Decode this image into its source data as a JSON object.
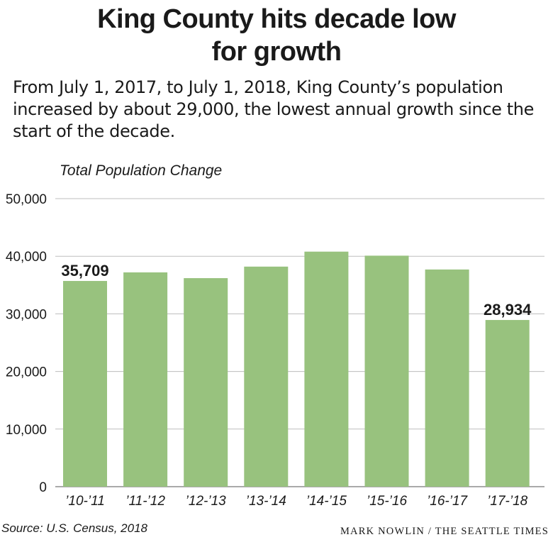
{
  "header": {
    "title_line1": "King County hits decade low",
    "title_line2": "for growth",
    "subtitle": "From July 1, 2017, to July 1, 2018, King County’s population increased by about 29,000, the lowest annual growth since the start of the decade."
  },
  "footer": {
    "source": "Source: U.S. Census, 2018",
    "credit": "MARK NOWLIN / THE SEATTLE TIMES"
  },
  "colors": {
    "bar": "#98c27e",
    "grid": "#bdbdbd",
    "text": "#1a1a1a"
  },
  "chart_data": {
    "type": "bar",
    "title": "King County hits decade low for growth",
    "ylabel": "Total Population Change",
    "xlabel": "",
    "categories": [
      "’10-’11",
      "’11-’12",
      "’12-’13",
      "’13-’14",
      "’14-’15",
      "’15-’16",
      "’16-’17",
      "’17-’18"
    ],
    "values": [
      35709,
      37200,
      36200,
      38200,
      40800,
      40100,
      37700,
      28934
    ],
    "data_labels": [
      "35,709",
      "",
      "",
      "",
      "",
      "",
      "",
      "28,934"
    ],
    "ylim": [
      0,
      50000
    ],
    "yticks": [
      0,
      10000,
      20000,
      30000,
      40000,
      50000
    ],
    "ytick_labels": [
      "0",
      "10,000",
      "20,000",
      "30,000",
      "40,000",
      "50,000"
    ],
    "grid": true,
    "legend": "none"
  }
}
